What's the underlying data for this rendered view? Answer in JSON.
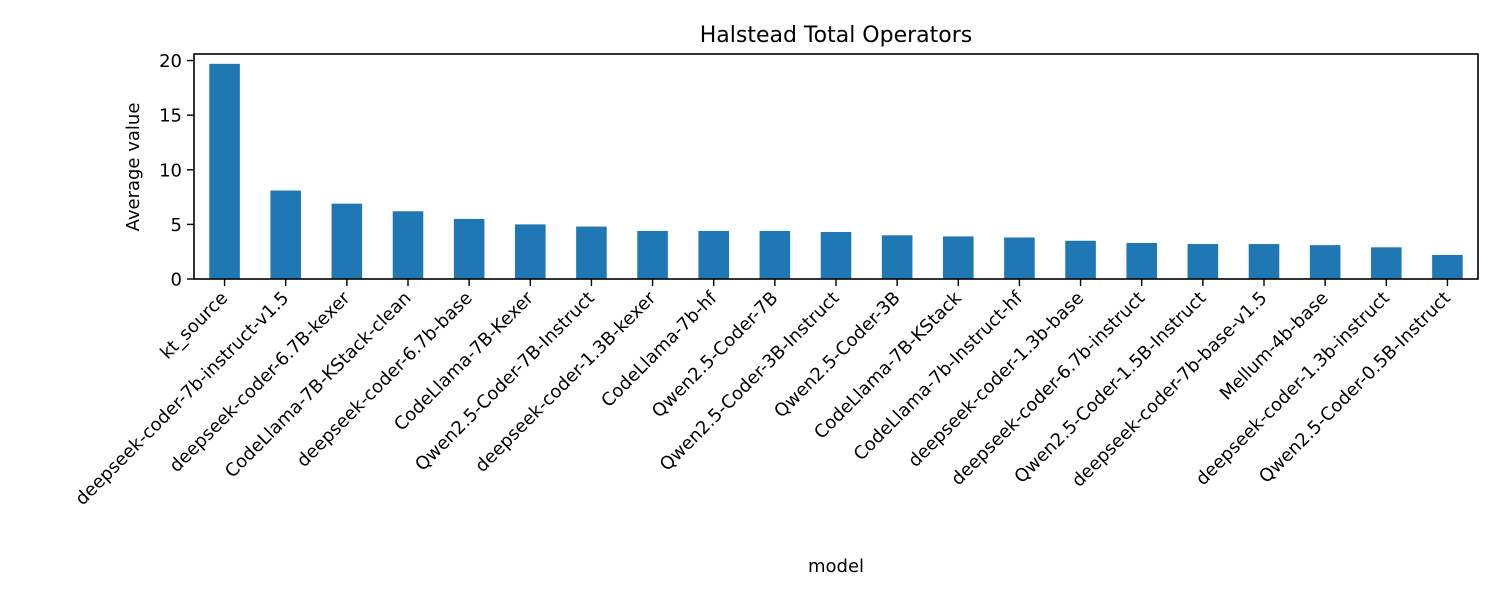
{
  "chart_data": {
    "type": "bar",
    "title": "Halstead Total Operators",
    "xlabel": "model",
    "ylabel": "Average value",
    "ylim": [
      0,
      20.6
    ],
    "yticks": [
      0,
      5,
      10,
      15,
      20
    ],
    "grid": false,
    "bar_color": "#1f77b4",
    "categories": [
      "kt_source",
      "deepseek-coder-7b-instruct-v1.5",
      "deepseek-coder-6.7B-kexer",
      "CodeLlama-7B-KStack-clean",
      "deepseek-coder-6.7b-base",
      "CodeLlama-7B-Kexer",
      "Qwen2.5-Coder-7B-Instruct",
      "deepseek-coder-1.3B-kexer",
      "CodeLlama-7b-hf",
      "Qwen2.5-Coder-7B",
      "Qwen2.5-Coder-3B-Instruct",
      "Qwen2.5-Coder-3B",
      "CodeLlama-7B-KStack",
      "CodeLlama-7b-Instruct-hf",
      "deepseek-coder-1.3b-base",
      "deepseek-coder-6.7b-instruct",
      "Qwen2.5-Coder-1.5B-Instruct",
      "deepseek-coder-7b-base-v1.5",
      "Mellum-4b-base",
      "deepseek-coder-1.3b-instruct",
      "Qwen2.5-Coder-0.5B-Instruct"
    ],
    "values": [
      19.7,
      8.1,
      6.9,
      6.2,
      5.5,
      5.0,
      4.8,
      4.4,
      4.4,
      4.4,
      4.3,
      4.0,
      3.9,
      3.8,
      3.5,
      3.3,
      3.2,
      3.2,
      3.1,
      2.9,
      2.2
    ]
  }
}
